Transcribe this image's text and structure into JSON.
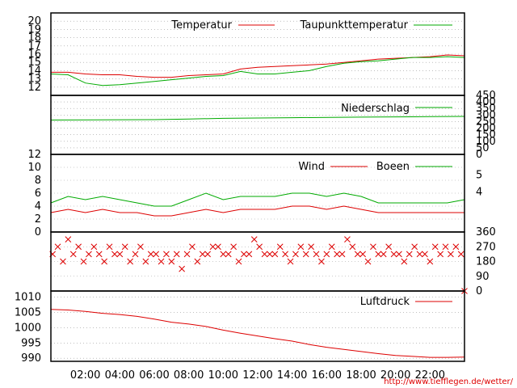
{
  "credit": "http://www.tiefflegen.de/wetter/",
  "time_axis": {
    "labels": [
      "02:00",
      "04:00",
      "06:00",
      "08:00",
      "10:00",
      "12:00",
      "14:00",
      "16:00",
      "18:00",
      "20:00",
      "22:00"
    ],
    "label_hours": [
      2,
      4,
      6,
      8,
      10,
      12,
      14,
      16,
      18,
      20,
      22
    ],
    "range_hours": [
      0,
      24
    ]
  },
  "colors": {
    "red": "#dd0000",
    "green": "#00aa00",
    "grid": "#999999"
  },
  "chart_data": [
    {
      "type": "line",
      "id": "temperature",
      "ylim": [
        11,
        21
      ],
      "yticks": [
        12,
        13,
        14,
        15,
        16,
        17,
        18,
        19,
        20
      ],
      "series": [
        {
          "name": "Temperatur",
          "color": "#dd0000",
          "x": [
            0,
            1,
            2,
            3,
            4,
            5,
            6,
            7,
            8,
            9,
            10,
            11,
            12,
            13,
            14,
            15,
            16,
            17,
            18,
            19,
            20,
            21,
            22,
            23,
            24
          ],
          "values": [
            13.8,
            13.8,
            13.6,
            13.5,
            13.5,
            13.3,
            13.2,
            13.2,
            13.4,
            13.5,
            13.6,
            14.2,
            14.4,
            14.5,
            14.6,
            14.7,
            14.8,
            15.0,
            15.2,
            15.4,
            15.5,
            15.6,
            15.7,
            15.9,
            15.8
          ]
        },
        {
          "name": "Taupunkttemperatur",
          "color": "#00aa00",
          "x": [
            0,
            1,
            2,
            3,
            4,
            5,
            6,
            7,
            8,
            9,
            10,
            11,
            12,
            13,
            14,
            15,
            16,
            17,
            18,
            19,
            20,
            21,
            22,
            23,
            24
          ],
          "values": [
            13.6,
            13.5,
            12.5,
            12.2,
            12.3,
            12.5,
            12.7,
            12.9,
            13.1,
            13.3,
            13.4,
            13.9,
            13.6,
            13.6,
            13.8,
            14.0,
            14.5,
            14.9,
            15.1,
            15.2,
            15.4,
            15.6,
            15.6,
            15.7,
            15.6
          ]
        }
      ]
    },
    {
      "type": "line",
      "id": "precipitation",
      "ylim": [
        0,
        450
      ],
      "yticks": [
        0,
        50,
        100,
        150,
        200,
        250,
        300,
        350,
        400,
        450
      ],
      "tick_labels": [
        "0",
        "50",
        "100",
        "150",
        "200",
        "250",
        "300",
        "350",
        "400",
        "450"
      ],
      "series": [
        {
          "name": "Niederschlag",
          "color": "#00aa00",
          "x": [
            0,
            6,
            8,
            10,
            14,
            18,
            22,
            24
          ],
          "values": [
            262,
            265,
            270,
            275,
            280,
            284,
            288,
            290
          ]
        }
      ]
    },
    {
      "type": "line",
      "id": "wind",
      "ylim": [
        0,
        12
      ],
      "yticks": [
        0,
        2,
        4,
        6,
        8,
        10,
        12
      ],
      "beaufort_ticks": [
        {
          "label": "4",
          "value": 6.2
        },
        {
          "label": "5",
          "value": 8.8
        }
      ],
      "series": [
        {
          "name": "Wind",
          "color": "#dd0000",
          "x": [
            0,
            1,
            2,
            3,
            4,
            5,
            6,
            7,
            8,
            9,
            10,
            11,
            12,
            13,
            14,
            15,
            16,
            17,
            18,
            19,
            20,
            21,
            22,
            23,
            24
          ],
          "values": [
            3,
            3.5,
            3,
            3.5,
            3,
            3,
            2.5,
            2.5,
            3,
            3.5,
            3,
            3.5,
            3.5,
            3.5,
            4,
            4,
            3.5,
            4,
            3.5,
            3,
            3,
            3,
            3,
            3,
            3
          ]
        },
        {
          "name": "Boeen",
          "color": "#00aa00",
          "x": [
            0,
            1,
            2,
            3,
            4,
            5,
            6,
            7,
            8,
            9,
            10,
            11,
            12,
            13,
            14,
            15,
            16,
            17,
            18,
            19,
            20,
            21,
            22,
            23,
            24
          ],
          "values": [
            4.5,
            5.5,
            5,
            5.5,
            5,
            4.5,
            4,
            4,
            5,
            6,
            5,
            5.5,
            5.5,
            5.5,
            6,
            6,
            5.5,
            6,
            5.5,
            4.5,
            4.5,
            4.5,
            4.5,
            4.5,
            5
          ]
        }
      ]
    },
    {
      "type": "scatter",
      "id": "wind-direction",
      "ylim": [
        0,
        360
      ],
      "yticks": [
        0,
        90,
        180,
        270,
        360
      ],
      "series": [
        {
          "name": "",
          "color": "#dd0000",
          "marker": "x",
          "x": [
            0.1,
            0.4,
            0.7,
            1.0,
            1.3,
            1.6,
            1.9,
            2.2,
            2.5,
            2.8,
            3.1,
            3.4,
            3.7,
            4.0,
            4.3,
            4.6,
            4.9,
            5.2,
            5.5,
            5.8,
            6.1,
            6.4,
            6.7,
            7.0,
            7.3,
            7.6,
            7.9,
            8.2,
            8.5,
            8.8,
            9.1,
            9.4,
            9.7,
            10.0,
            10.3,
            10.6,
            10.9,
            11.2,
            11.5,
            11.8,
            12.1,
            12.4,
            12.7,
            13.0,
            13.3,
            13.6,
            13.9,
            14.2,
            14.5,
            14.8,
            15.1,
            15.4,
            15.7,
            16.0,
            16.3,
            16.6,
            16.9,
            17.2,
            17.5,
            17.8,
            18.1,
            18.4,
            18.7,
            19.0,
            19.3,
            19.6,
            19.9,
            20.2,
            20.5,
            20.8,
            21.1,
            21.4,
            21.7,
            22.0,
            22.3,
            22.6,
            22.9,
            23.2,
            23.5,
            23.8,
            24.0
          ],
          "values": [
            225,
            270,
            180,
            315,
            225,
            270,
            180,
            225,
            270,
            225,
            180,
            270,
            225,
            225,
            270,
            180,
            225,
            270,
            180,
            225,
            225,
            180,
            225,
            180,
            225,
            135,
            225,
            270,
            180,
            225,
            225,
            270,
            270,
            225,
            225,
            270,
            180,
            225,
            225,
            315,
            270,
            225,
            225,
            225,
            270,
            225,
            180,
            225,
            270,
            225,
            270,
            225,
            180,
            225,
            270,
            225,
            225,
            315,
            270,
            225,
            225,
            180,
            270,
            225,
            225,
            270,
            225,
            225,
            180,
            225,
            270,
            225,
            225,
            180,
            270,
            225,
            270,
            225,
            270,
            225,
            0
          ]
        }
      ]
    },
    {
      "type": "line",
      "id": "pressure",
      "ylim": [
        989,
        1012
      ],
      "yticks": [
        990,
        995,
        1000,
        1005,
        1010
      ],
      "series": [
        {
          "name": "Luftdruck",
          "color": "#dd0000",
          "x": [
            0,
            1,
            2,
            3,
            4,
            5,
            6,
            7,
            8,
            9,
            10,
            11,
            12,
            13,
            14,
            15,
            16,
            17,
            18,
            19,
            20,
            21,
            22,
            23,
            24
          ],
          "values": [
            1006,
            1005.8,
            1005.3,
            1004.7,
            1004.3,
            1003.7,
            1002.8,
            1001.8,
            1001.2,
            1000.4,
            999.2,
            998.2,
            997.3,
            996.4,
            995.6,
            994.5,
            993.6,
            992.9,
            992.2,
            991.5,
            990.9,
            990.6,
            990.3,
            990.3,
            990.4
          ]
        }
      ]
    }
  ]
}
